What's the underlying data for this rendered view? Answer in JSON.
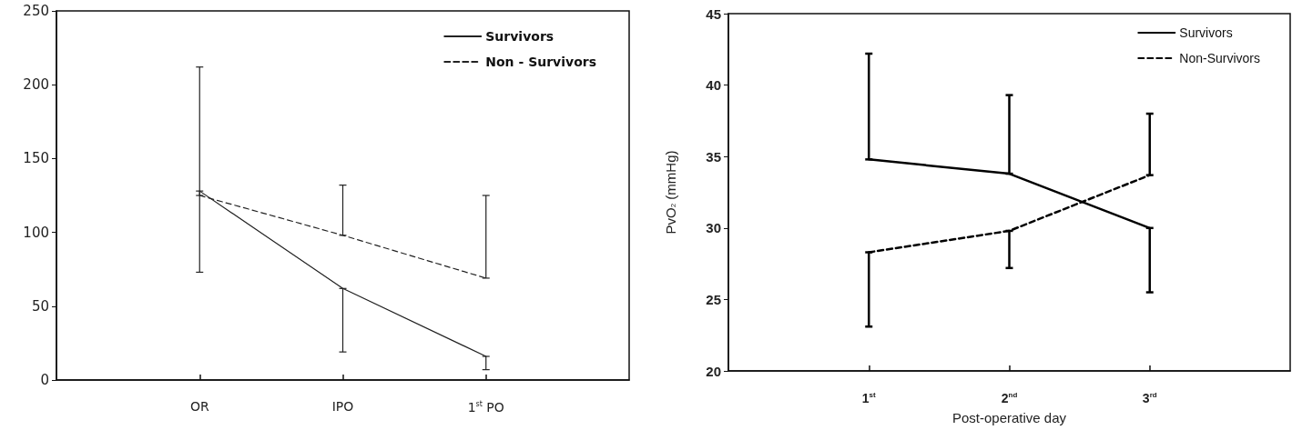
{
  "chart_data": [
    {
      "type": "line",
      "categories": [
        "OR",
        "IPO",
        "1$^{st}$ PO"
      ],
      "ylim": [
        0,
        250
      ],
      "yticks": [
        0,
        50,
        100,
        150,
        200,
        250
      ],
      "legend": "top right",
      "marker": "none",
      "series": [
        {
          "name": "Survivors",
          "color": "#222222",
          "line_style": "solid",
          "values": [
            128,
            62,
            16
          ],
          "errors": [
            [
              73,
              128
            ],
            [
              19,
              62
            ],
            [
              7,
              16
            ]
          ]
        },
        {
          "name": "Non - Survivors",
          "color": "#222222",
          "line_style": "dashed",
          "values": [
            125,
            98,
            69
          ],
          "errors": [
            [
              125,
              212
            ],
            [
              98,
              132
            ],
            [
              69,
              125
            ]
          ]
        }
      ]
    },
    {
      "type": "line",
      "categories": [
        "1$^{st}$",
        "2$^{nd}$",
        "3$^{rd}$"
      ],
      "xlabel": "Post-operative day",
      "ylabel": "PvO$_{2}$ (mmHg)",
      "ylim": [
        20,
        45
      ],
      "yticks": [
        20,
        25,
        30,
        35,
        40,
        45
      ],
      "legend": "top right",
      "marker": "none",
      "series": [
        {
          "name": "Survivors",
          "color": "#000000",
          "line_style": "solid",
          "values": [
            34.8,
            33.8,
            30.0
          ],
          "errors": [
            [
              34.8,
              42.2
            ],
            [
              33.8,
              39.3
            ],
            [
              25.5,
              30.0
            ]
          ]
        },
        {
          "name": "Non-Survivors",
          "color": "#000000",
          "line_style": "dashed",
          "values": [
            28.3,
            29.8,
            33.7
          ],
          "errors": [
            [
              23.1,
              28.3
            ],
            [
              27.2,
              29.8
            ],
            [
              33.7,
              38.0
            ]
          ]
        }
      ]
    }
  ]
}
